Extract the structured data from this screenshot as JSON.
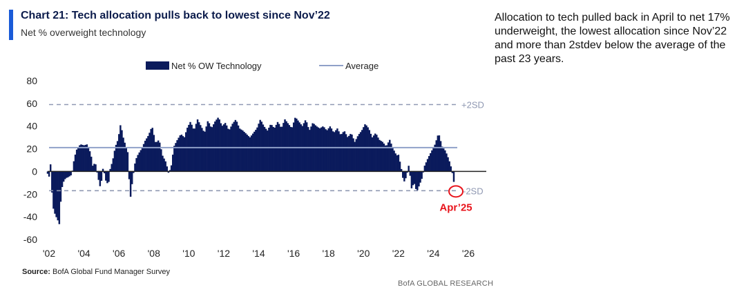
{
  "header": {
    "title": "Chart 21: Tech allocation pulls back to lowest since Nov’22",
    "subtitle": "Net % overweight technology"
  },
  "commentary": {
    "text": "Allocation to tech pulled back in April to net 17% underweight, the lowest allocation since Nov’22 and more than 2stdev below the average of the past 23 years."
  },
  "footer": {
    "source_label": "Source:",
    "source_text": " BofA Global Fund Manager Survey",
    "brand": "BofA GLOBAL RESEARCH"
  },
  "colors": {
    "bars": "#0b1b5c",
    "average": "#8fa0c8",
    "sd_lines": "#8f98b2",
    "annotation": "#e8141c",
    "accent": "#1a5bd8"
  },
  "chart_data": {
    "type": "bar",
    "title": "Chart 21: Tech allocation pulls back to lowest since Nov’22",
    "subtitle": "Net % overweight technology",
    "ylim": [
      -60,
      80
    ],
    "yticks": [
      80,
      60,
      40,
      20,
      0,
      -20,
      -40,
      -60
    ],
    "xlim": [
      2002.0,
      2026.0
    ],
    "xticks": [
      {
        "year": 2002,
        "label": "'02"
      },
      {
        "year": 2004,
        "label": "'04"
      },
      {
        "year": 2006,
        "label": "'06"
      },
      {
        "year": 2008,
        "label": "'08"
      },
      {
        "year": 2010,
        "label": "'10"
      },
      {
        "year": 2012,
        "label": "'12"
      },
      {
        "year": 2014,
        "label": "'14"
      },
      {
        "year": 2016,
        "label": "'16"
      },
      {
        "year": 2018,
        "label": "'18"
      },
      {
        "year": 2020,
        "label": "'20"
      },
      {
        "year": 2022,
        "label": "'22"
      },
      {
        "year": 2024,
        "label": "'24"
      },
      {
        "year": 2026,
        "label": "'26"
      }
    ],
    "legend": {
      "position": "top-center",
      "entries": [
        {
          "name": "Net % OW Technology",
          "kind": "bar"
        },
        {
          "name": "Average",
          "kind": "line"
        }
      ]
    },
    "reference_lines": [
      {
        "name": "Average",
        "value": 21,
        "style": "solid"
      },
      {
        "name": "+2SD",
        "value": 59,
        "style": "dashed",
        "label": "+2SD"
      },
      {
        "name": "-2SD",
        "value": -17,
        "style": "dashed",
        "label": "-2SD"
      }
    ],
    "annotation": {
      "label": "Apr’25",
      "date": 2025.25,
      "value": -17
    },
    "series": [
      {
        "name": "Net % OW Technology",
        "anchors": [
          [
            2001.92,
            -2
          ],
          [
            2002.0,
            -5
          ],
          [
            2002.1,
            8
          ],
          [
            2002.2,
            -30
          ],
          [
            2002.35,
            -38
          ],
          [
            2002.5,
            -43
          ],
          [
            2002.6,
            -47
          ],
          [
            2002.7,
            -18
          ],
          [
            2002.8,
            -10
          ],
          [
            2002.95,
            -6
          ],
          [
            2003.1,
            -5
          ],
          [
            2003.3,
            -3
          ],
          [
            2003.45,
            12
          ],
          [
            2003.6,
            20
          ],
          [
            2003.8,
            24
          ],
          [
            2004.0,
            23
          ],
          [
            2004.2,
            24
          ],
          [
            2004.4,
            15
          ],
          [
            2004.5,
            5
          ],
          [
            2004.65,
            8
          ],
          [
            2004.8,
            -5
          ],
          [
            2004.95,
            -15
          ],
          [
            2005.1,
            4
          ],
          [
            2005.25,
            -8
          ],
          [
            2005.4,
            -12
          ],
          [
            2005.5,
            2
          ],
          [
            2005.65,
            10
          ],
          [
            2005.8,
            22
          ],
          [
            2005.95,
            28
          ],
          [
            2006.1,
            42
          ],
          [
            2006.25,
            30
          ],
          [
            2006.4,
            22
          ],
          [
            2006.5,
            18
          ],
          [
            2006.65,
            -25
          ],
          [
            2006.8,
            -5
          ],
          [
            2006.95,
            10
          ],
          [
            2007.1,
            15
          ],
          [
            2007.3,
            20
          ],
          [
            2007.5,
            27
          ],
          [
            2007.7,
            32
          ],
          [
            2007.9,
            40
          ],
          [
            2008.1,
            25
          ],
          [
            2008.3,
            28
          ],
          [
            2008.5,
            14
          ],
          [
            2008.7,
            8
          ],
          [
            2008.85,
            -2
          ],
          [
            2009.0,
            5
          ],
          [
            2009.15,
            22
          ],
          [
            2009.35,
            28
          ],
          [
            2009.55,
            33
          ],
          [
            2009.75,
            30
          ],
          [
            2009.9,
            38
          ],
          [
            2010.1,
            44
          ],
          [
            2010.3,
            36
          ],
          [
            2010.5,
            46
          ],
          [
            2010.7,
            40
          ],
          [
            2010.9,
            34
          ],
          [
            2011.1,
            45
          ],
          [
            2011.3,
            38
          ],
          [
            2011.5,
            44
          ],
          [
            2011.7,
            48
          ],
          [
            2011.9,
            40
          ],
          [
            2012.1,
            43
          ],
          [
            2012.3,
            36
          ],
          [
            2012.5,
            42
          ],
          [
            2012.7,
            46
          ],
          [
            2012.9,
            38
          ],
          [
            2013.1,
            36
          ],
          [
            2013.3,
            33
          ],
          [
            2013.5,
            30
          ],
          [
            2013.7,
            34
          ],
          [
            2013.9,
            38
          ],
          [
            2014.1,
            46
          ],
          [
            2014.3,
            40
          ],
          [
            2014.5,
            36
          ],
          [
            2014.7,
            42
          ],
          [
            2014.9,
            38
          ],
          [
            2015.1,
            44
          ],
          [
            2015.3,
            38
          ],
          [
            2015.5,
            46
          ],
          [
            2015.7,
            42
          ],
          [
            2015.9,
            38
          ],
          [
            2016.1,
            48
          ],
          [
            2016.3,
            44
          ],
          [
            2016.5,
            40
          ],
          [
            2016.7,
            46
          ],
          [
            2016.9,
            36
          ],
          [
            2017.1,
            43
          ],
          [
            2017.3,
            40
          ],
          [
            2017.5,
            38
          ],
          [
            2017.7,
            40
          ],
          [
            2017.9,
            36
          ],
          [
            2018.1,
            40
          ],
          [
            2018.3,
            34
          ],
          [
            2018.5,
            38
          ],
          [
            2018.7,
            32
          ],
          [
            2018.9,
            36
          ],
          [
            2019.1,
            30
          ],
          [
            2019.3,
            34
          ],
          [
            2019.5,
            26
          ],
          [
            2019.7,
            32
          ],
          [
            2019.9,
            36
          ],
          [
            2020.1,
            42
          ],
          [
            2020.3,
            38
          ],
          [
            2020.5,
            30
          ],
          [
            2020.7,
            34
          ],
          [
            2020.9,
            28
          ],
          [
            2021.1,
            26
          ],
          [
            2021.3,
            22
          ],
          [
            2021.5,
            28
          ],
          [
            2021.7,
            20
          ],
          [
            2021.9,
            14
          ],
          [
            2022.0,
            15
          ],
          [
            2022.15,
            4
          ],
          [
            2022.3,
            -10
          ],
          [
            2022.45,
            -5
          ],
          [
            2022.6,
            6
          ],
          [
            2022.75,
            -15
          ],
          [
            2022.9,
            -10
          ],
          [
            2023.05,
            -18
          ],
          [
            2023.2,
            -12
          ],
          [
            2023.35,
            -6
          ],
          [
            2023.5,
            5
          ],
          [
            2023.7,
            12
          ],
          [
            2023.9,
            18
          ],
          [
            2024.1,
            24
          ],
          [
            2024.3,
            34
          ],
          [
            2024.5,
            22
          ],
          [
            2024.7,
            18
          ],
          [
            2024.9,
            10
          ],
          [
            2025.05,
            2
          ],
          [
            2025.2,
            -12
          ],
          [
            2025.25,
            -17
          ]
        ]
      }
    ]
  }
}
